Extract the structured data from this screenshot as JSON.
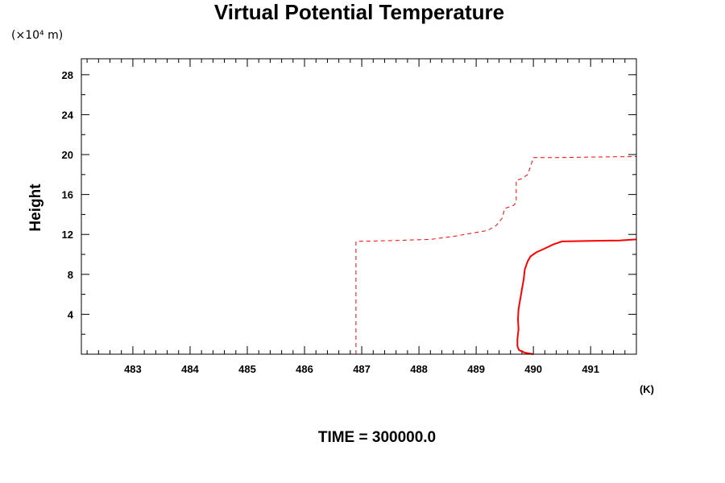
{
  "chart_data": {
    "type": "line",
    "title": "Virtual Potential Temperature",
    "ylabel": "Height",
    "y_scale_label": "(×10⁴ m)",
    "xlabel": "(K)",
    "footer": "TIME = 300000.0",
    "xlim": [
      482.1,
      491.8
    ],
    "ylim": [
      0,
      29.6
    ],
    "xticks": [
      483,
      484,
      485,
      486,
      487,
      488,
      489,
      490,
      491
    ],
    "yticks": [
      4,
      8,
      12,
      16,
      20,
      24,
      28
    ],
    "series": [
      {
        "style": "dashed",
        "color": "#ff0000",
        "points": [
          [
            486.9,
            0
          ],
          [
            486.9,
            11.3
          ],
          [
            487.6,
            11.4
          ],
          [
            488.2,
            11.5
          ],
          [
            488.6,
            11.8
          ],
          [
            488.9,
            12.1
          ],
          [
            489.2,
            12.4
          ],
          [
            489.35,
            12.9
          ],
          [
            489.45,
            13.6
          ],
          [
            489.5,
            14.6
          ],
          [
            489.65,
            14.9
          ],
          [
            489.7,
            15.2
          ],
          [
            489.7,
            17.4
          ],
          [
            489.8,
            17.6
          ],
          [
            489.9,
            18.0
          ],
          [
            489.95,
            18.8
          ],
          [
            490.0,
            19.7
          ],
          [
            490.5,
            19.7
          ],
          [
            491.0,
            19.75
          ],
          [
            491.8,
            19.8
          ]
        ]
      },
      {
        "style": "solid",
        "color": "#ff0000",
        "points": [
          [
            490.0,
            0
          ],
          [
            489.85,
            0.15
          ],
          [
            489.75,
            0.4
          ],
          [
            489.72,
            0.8
          ],
          [
            489.72,
            1.5
          ],
          [
            489.74,
            2.5
          ],
          [
            489.73,
            3.5
          ],
          [
            489.74,
            4.5
          ],
          [
            489.77,
            5.5
          ],
          [
            489.8,
            6.5
          ],
          [
            489.83,
            7.5
          ],
          [
            489.85,
            8.5
          ],
          [
            489.9,
            9.3
          ],
          [
            489.95,
            9.8
          ],
          [
            490.05,
            10.2
          ],
          [
            490.2,
            10.6
          ],
          [
            490.35,
            11.0
          ],
          [
            490.5,
            11.3
          ],
          [
            491.0,
            11.35
          ],
          [
            491.5,
            11.4
          ],
          [
            491.8,
            11.5
          ]
        ]
      }
    ]
  }
}
